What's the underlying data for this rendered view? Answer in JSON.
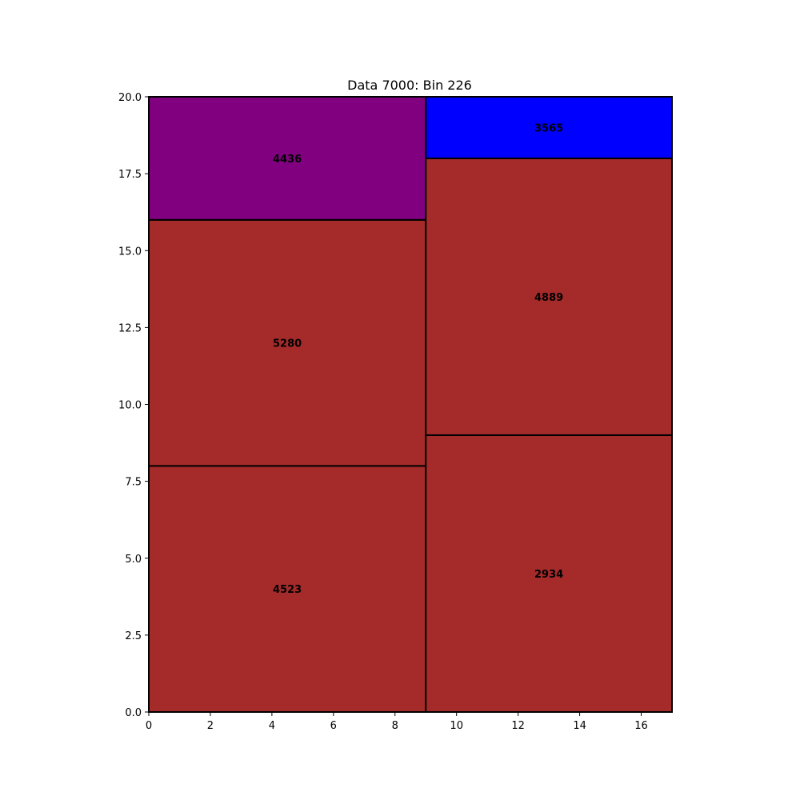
{
  "chart_data": {
    "type": "treemap",
    "title": "Data 7000: Bin 226",
    "xlabel": "",
    "ylabel": "",
    "xlim": [
      0,
      17
    ],
    "ylim": [
      0,
      20
    ],
    "x_ticks": [
      0,
      2,
      4,
      6,
      8,
      10,
      12,
      14,
      16
    ],
    "x_tick_labels": [
      "0",
      "2",
      "4",
      "6",
      "8",
      "10",
      "12",
      "14",
      "16"
    ],
    "y_ticks": [
      0,
      2.5,
      5,
      7.5,
      10,
      12.5,
      15,
      17.5,
      20
    ],
    "y_tick_labels": [
      "0.0",
      "2.5",
      "5.0",
      "7.5",
      "10.0",
      "12.5",
      "15.0",
      "17.5",
      "20.0"
    ],
    "grid": false,
    "rectangles": [
      {
        "label": "4523",
        "x": 0,
        "y": 0,
        "w": 9,
        "h": 8,
        "color": "#a52a2a"
      },
      {
        "label": "5280",
        "x": 0,
        "y": 8,
        "w": 9,
        "h": 8,
        "color": "#a52a2a"
      },
      {
        "label": "4436",
        "x": 0,
        "y": 16,
        "w": 9,
        "h": 4,
        "color": "#800080"
      },
      {
        "label": "2934",
        "x": 9,
        "y": 0,
        "w": 8,
        "h": 9,
        "color": "#a52a2a"
      },
      {
        "label": "4889",
        "x": 9,
        "y": 9,
        "w": 8,
        "h": 9,
        "color": "#a52a2a"
      },
      {
        "label": "3565",
        "x": 9,
        "y": 18,
        "w": 8,
        "h": 2,
        "color": "#0000ff"
      }
    ]
  }
}
